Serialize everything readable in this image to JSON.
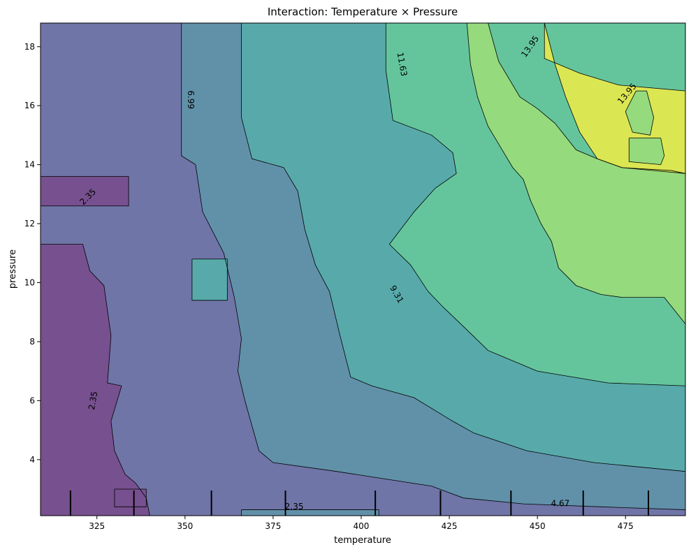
{
  "chart_data": {
    "type": "heatmap",
    "title": "Interaction: Temperature × Pressure",
    "xlabel": "temperature",
    "ylabel": "pressure",
    "xlim": [
      309,
      492
    ],
    "ylim": [
      2.1,
      18.8
    ],
    "x_ticks": [
      325,
      350,
      375,
      400,
      425,
      450,
      475
    ],
    "y_ticks": [
      4,
      6,
      8,
      10,
      12,
      14,
      16,
      18
    ],
    "colormap": "viridis",
    "level_colors": [
      "#77508f",
      "#6f75a7",
      "#6191a9",
      "#58aaaa",
      "#64c59c",
      "#95da7d",
      "#dbe653"
    ],
    "levels": [
      {
        "value": 2.35,
        "label": "2.35"
      },
      {
        "value": 4.67,
        "label": "4.67"
      },
      {
        "value": 6.99,
        "label": "6.99"
      },
      {
        "value": 9.31,
        "label": "9.31"
      },
      {
        "value": 11.63,
        "label": "11.63"
      },
      {
        "value": 13.95,
        "label": "13.95"
      }
    ],
    "contour_labels": [
      {
        "text": "2.35",
        "x": 322.5,
        "y": 12.9,
        "rotation": -45
      },
      {
        "text": "2.35",
        "x": 324.0,
        "y": 6.0,
        "rotation": -80
      },
      {
        "text": "2.35",
        "x": 381.0,
        "y": 2.4,
        "rotation": 0
      },
      {
        "text": "4.67",
        "x": 456.5,
        "y": 2.5,
        "rotation": 0
      },
      {
        "text": "6.99",
        "x": 351.5,
        "y": 16.2,
        "rotation": 90
      },
      {
        "text": "9.31",
        "x": 410.0,
        "y": 9.6,
        "rotation": 60
      },
      {
        "text": "11.63",
        "x": 411.5,
        "y": 17.4,
        "rotation": 80
      },
      {
        "text": "13.95",
        "x": 448.0,
        "y": 18.0,
        "rotation": -55
      },
      {
        "text": "13.95",
        "x": 475.5,
        "y": 16.4,
        "rotation": -50
      }
    ],
    "rug_x": [
      317.5,
      335.5,
      357.5,
      378.5,
      404,
      422.5,
      442.5,
      463,
      481.5
    ],
    "grid": false
  }
}
